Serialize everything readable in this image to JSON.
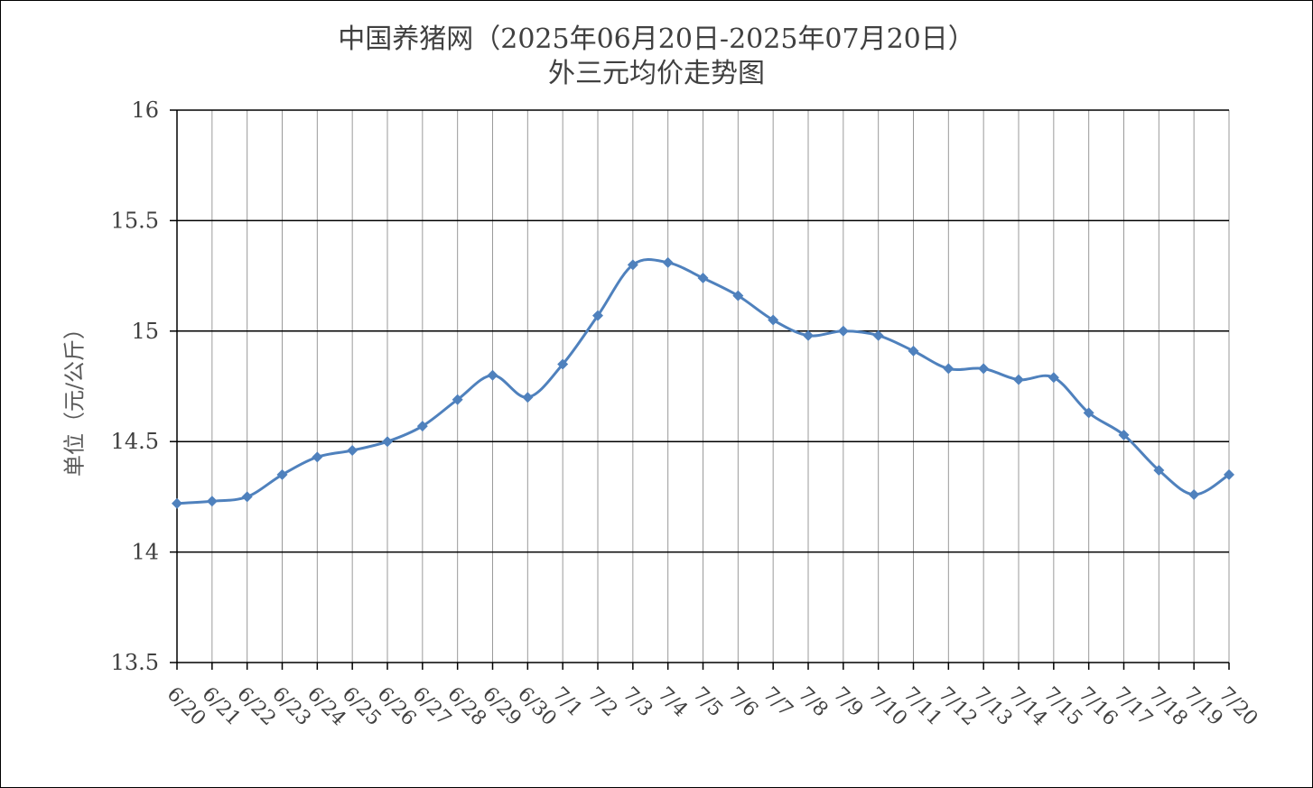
{
  "chart_data": {
    "type": "line",
    "title": "中国养猪网（2025年06月20日-2025年07月20日）",
    "subtitle": "外三元均价走势图",
    "ylabel": "单位（元/公斤）",
    "xlabel": "",
    "ylim": [
      13.5,
      16
    ],
    "yticks": [
      "13.5",
      "14",
      "14.5",
      "15",
      "15.5",
      "16"
    ],
    "grid": true,
    "legend": "none",
    "line_color": "#4f81bd",
    "categories": [
      "6/20",
      "6/21",
      "6/22",
      "6/23",
      "6/24",
      "6/25",
      "6/26",
      "6/27",
      "6/28",
      "6/29",
      "6/30",
      "7/1",
      "7/2",
      "7/3",
      "7/4",
      "7/5",
      "7/6",
      "7/7",
      "7/8",
      "7/9",
      "7/10",
      "7/11",
      "7/12",
      "7/13",
      "7/14",
      "7/15",
      "7/16",
      "7/17",
      "7/18",
      "7/19",
      "7/20"
    ],
    "series": [
      {
        "values": [
          14.22,
          14.23,
          14.25,
          14.35,
          14.43,
          14.46,
          14.5,
          14.57,
          14.69,
          14.8,
          14.7,
          14.85,
          15.07,
          15.3,
          15.31,
          15.24,
          15.16,
          15.05,
          14.98,
          15.0,
          14.98,
          14.91,
          14.83,
          14.83,
          14.78,
          14.79,
          14.63,
          14.53,
          14.37,
          14.26,
          14.35
        ]
      }
    ]
  }
}
